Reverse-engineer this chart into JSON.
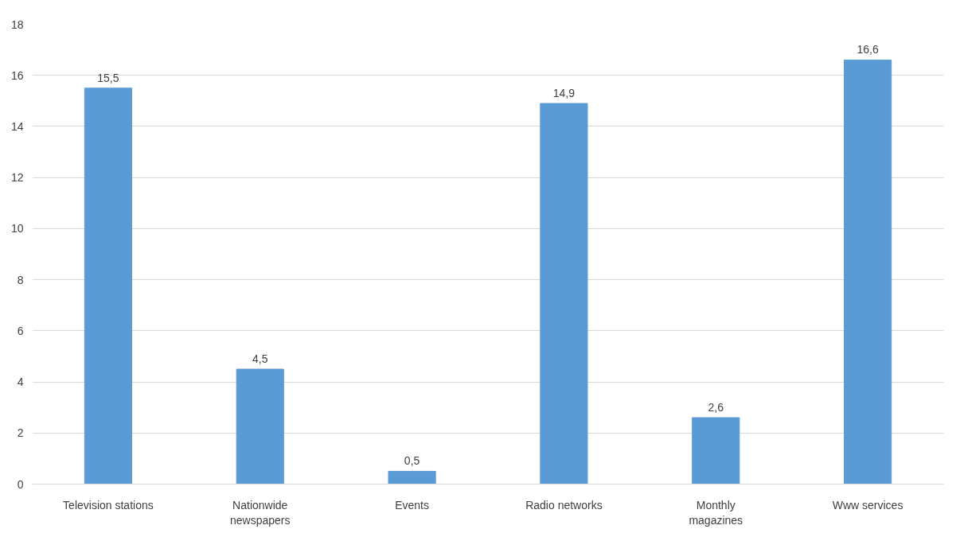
{
  "chart_data": {
    "type": "bar",
    "categories": [
      "Television stations",
      "Nationwide\nnewspapers",
      "Events",
      "Radio networks",
      "Monthly\nmagazines",
      "Www services"
    ],
    "values": [
      15.5,
      4.5,
      0.5,
      14.9,
      2.6,
      16.6
    ],
    "value_labels": [
      "15,5",
      "4,5",
      "0,5",
      "14,9",
      "2,6",
      "16,6"
    ],
    "color": "#5b9bd5",
    "ylim": [
      0,
      18
    ],
    "yticks": [
      0,
      2,
      4,
      6,
      8,
      10,
      12,
      14,
      16,
      18
    ],
    "grid": "y"
  }
}
